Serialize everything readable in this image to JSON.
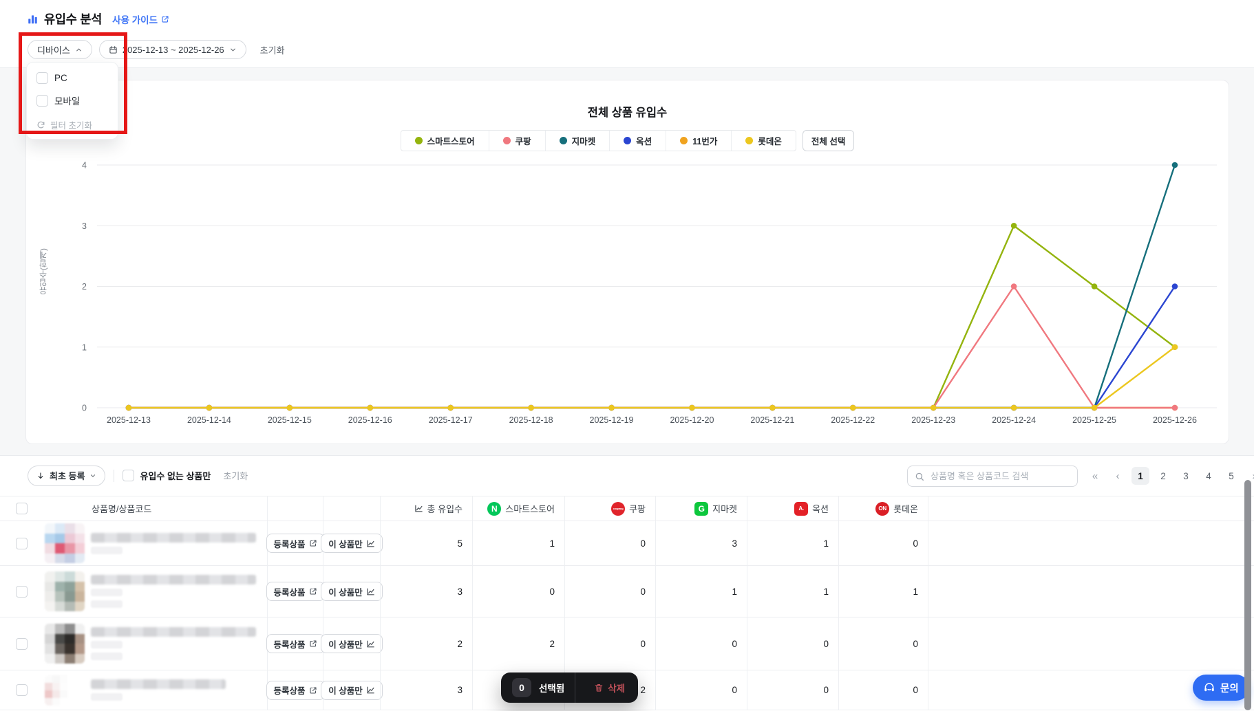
{
  "page": {
    "title": "유입수 분석",
    "guide_link_label": "사용 가이드"
  },
  "filters": {
    "device_label": "디바이스",
    "date_range": "2025-12-13 ~ 2025-12-26",
    "reset_label": "초기화",
    "dropdown": {
      "options": [
        "PC",
        "모바일"
      ],
      "reset_label": "필터 초기화"
    }
  },
  "chart_data": {
    "type": "line",
    "title": "전체 상품 유입수",
    "ylabel": "유입수(합계)",
    "ylim": [
      0,
      4
    ],
    "yticks": [
      0,
      1,
      2,
      3,
      4
    ],
    "grid": true,
    "legend_position": "top-center",
    "select_all_label": "전체 선택",
    "x": [
      "2025-12-13",
      "2025-12-14",
      "2025-12-15",
      "2025-12-16",
      "2025-12-17",
      "2025-12-18",
      "2025-12-19",
      "2025-12-20",
      "2025-12-21",
      "2025-12-22",
      "2025-12-23",
      "2025-12-24",
      "2025-12-25",
      "2025-12-26"
    ],
    "series": [
      {
        "name": "스마트스토어",
        "color": "#94b40e",
        "values": [
          0,
          0,
          0,
          0,
          0,
          0,
          0,
          0,
          0,
          0,
          0,
          3,
          2,
          1
        ]
      },
      {
        "name": "쿠팡",
        "color": "#f0787f",
        "values": [
          0,
          0,
          0,
          0,
          0,
          0,
          0,
          0,
          0,
          0,
          0,
          2,
          0,
          0
        ]
      },
      {
        "name": "지마켓",
        "color": "#166f7c",
        "values": [
          0,
          0,
          0,
          0,
          0,
          0,
          0,
          0,
          0,
          0,
          0,
          0,
          0,
          4
        ]
      },
      {
        "name": "옥션",
        "color": "#2b46d1",
        "values": [
          0,
          0,
          0,
          0,
          0,
          0,
          0,
          0,
          0,
          0,
          0,
          0,
          0,
          2
        ]
      },
      {
        "name": "11번가",
        "color": "#f0a31f",
        "values": [
          0,
          0,
          0,
          0,
          0,
          0,
          0,
          0,
          0,
          0,
          0,
          0,
          0,
          0
        ]
      },
      {
        "name": "롯데온",
        "color": "#ecc71f",
        "values": [
          0,
          0,
          0,
          0,
          0,
          0,
          0,
          0,
          0,
          0,
          0,
          0,
          0,
          1
        ]
      }
    ]
  },
  "table": {
    "sort_label": "최초 등록",
    "filter_label": "유입수 없는 상품만",
    "reset_label": "초기화",
    "search_placeholder": "상품명 혹은 상품코드 검색",
    "name_column": "상품명/상품코드",
    "total_column": "총 유입수",
    "row_buttons": [
      "등록상품",
      "이 상품만"
    ],
    "marketplaces": [
      {
        "label": "스마트스토어",
        "badge_text": "N",
        "badge_bg": "#03c75a",
        "badge_shape": "circle"
      },
      {
        "label": "쿠팡",
        "badge_text": "coupang",
        "badge_bg": "#e0242b",
        "badge_shape": "circle"
      },
      {
        "label": "지마켓",
        "badge_text": "G",
        "badge_bg": "#0dc73d",
        "badge_shape": "square"
      },
      {
        "label": "옥션",
        "badge_text": "A.",
        "badge_bg": "#e32127",
        "badge_shape": "square"
      },
      {
        "label": "롯데온",
        "badge_text": "ON",
        "badge_bg": "#da1f26",
        "badge_shape": "circle"
      }
    ],
    "rows": [
      {
        "total": "5",
        "smartstore": "1",
        "coupang": "0",
        "gmarket": "3",
        "auction": "1",
        "lotteon": "0"
      },
      {
        "total": "3",
        "smartstore": "0",
        "coupang": "0",
        "gmarket": "1",
        "auction": "1",
        "lotteon": "1"
      },
      {
        "total": "2",
        "smartstore": "2",
        "coupang": "0",
        "gmarket": "0",
        "auction": "0",
        "lotteon": "0"
      },
      {
        "total": "3",
        "smartstore": "",
        "coupang": "2",
        "gmarket": "0",
        "auction": "0",
        "lotteon": "0"
      }
    ]
  },
  "pagination": {
    "first": "«",
    "prev": "‹",
    "pages": [
      "1",
      "2",
      "3",
      "4",
      "5"
    ],
    "current": "1",
    "next": "›",
    "last": "»"
  },
  "selection_bar": {
    "count": "0",
    "selected_label": "선택됨",
    "delete_label": "삭제"
  },
  "contact_label": "문의"
}
